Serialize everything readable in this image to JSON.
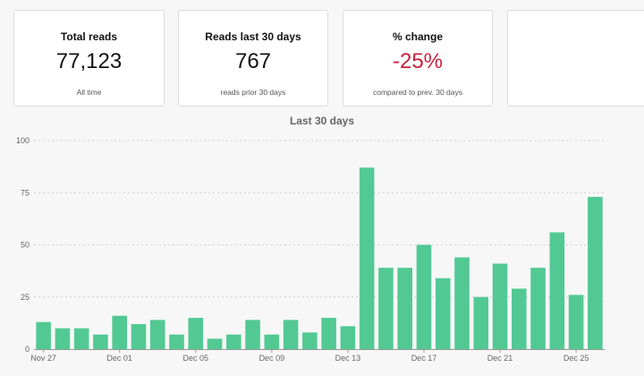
{
  "cards": [
    {
      "title": "Total reads",
      "value": "77,123",
      "sub": "All time",
      "negative": false
    },
    {
      "title": "Reads last 30 days",
      "value": "767",
      "sub": "reads prior 30 days",
      "negative": false
    },
    {
      "title": "% change",
      "value": "-25%",
      "sub": "compared to prev. 30 days",
      "negative": true
    },
    {
      "title": "",
      "value": "",
      "sub": "",
      "negative": false
    }
  ],
  "chart_title": "Last 30 days",
  "chart_data": {
    "type": "bar",
    "title": "Last 30 days",
    "xlabel": "",
    "ylabel": "",
    "ylim": [
      0,
      100
    ],
    "yticks": [
      0,
      25,
      50,
      75,
      100
    ],
    "grid": true,
    "bar_color": "#52c993",
    "categories": [
      "Nov 27",
      "Nov 28",
      "Nov 29",
      "Nov 30",
      "Dec 01",
      "Dec 02",
      "Dec 03",
      "Dec 04",
      "Dec 05",
      "Dec 06",
      "Dec 07",
      "Dec 08",
      "Dec 09",
      "Dec 10",
      "Dec 11",
      "Dec 12",
      "Dec 13",
      "Dec 14",
      "Dec 15",
      "Dec 16",
      "Dec 17",
      "Dec 18",
      "Dec 19",
      "Dec 20",
      "Dec 21",
      "Dec 22",
      "Dec 23",
      "Dec 24",
      "Dec 25",
      "Dec 26"
    ],
    "xtick_labels": [
      "Nov 27",
      "Dec 01",
      "Dec 05",
      "Dec 09",
      "Dec 13",
      "Dec 17",
      "Dec 21",
      "Dec 25"
    ],
    "values": [
      13,
      10,
      10,
      7,
      16,
      12,
      14,
      7,
      15,
      5,
      7,
      14,
      7,
      14,
      8,
      15,
      11,
      87,
      39,
      39,
      50,
      34,
      44,
      25,
      41,
      29,
      39,
      56,
      26,
      73
    ]
  }
}
